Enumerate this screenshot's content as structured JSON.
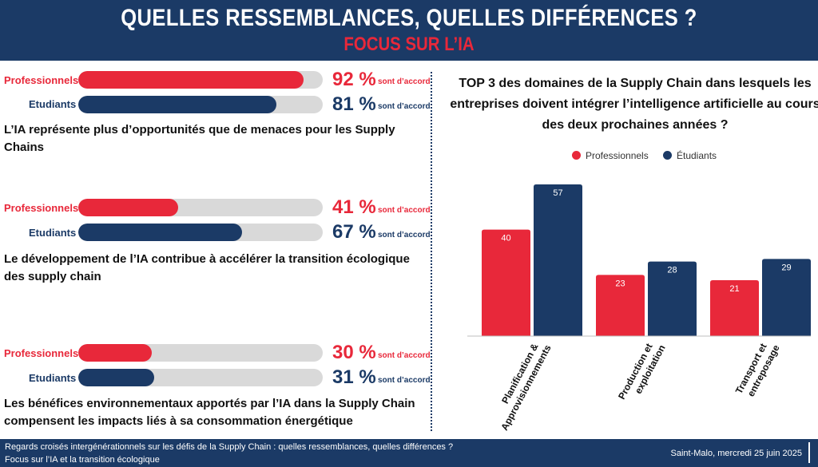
{
  "header": {
    "title": "QUELLES RESSEMBLANCES, QUELLES DIFFÉRENCES ?",
    "subtitle": "FOCUS SUR L’IA"
  },
  "colors": {
    "navy": "#1b3a66",
    "red": "#e8283a",
    "track": "#d9d9d9"
  },
  "left_panel": {
    "rows": [
      {
        "professionnels": {
          "label": "Professionnels",
          "value": 92,
          "pct": "92 %",
          "suffix": "sont d’accord"
        },
        "etudiants": {
          "label": "Etudiants",
          "value": 81,
          "pct": "81 %",
          "suffix": "sont d’accord"
        },
        "statement": "L’IA représente plus d’opportunités que de menaces pour les Supply Chains"
      },
      {
        "professionnels": {
          "label": "Professionnels",
          "value": 41,
          "pct": "41 %",
          "suffix": "sont d’accord"
        },
        "etudiants": {
          "label": "Etudiants",
          "value": 67,
          "pct": "67 %",
          "suffix": "sont d’accord"
        },
        "statement": "Le développement de l’IA contribue à accélérer la transition écologique des supply chain"
      },
      {
        "professionnels": {
          "label": "Professionnels",
          "value": 30,
          "pct": "30 %",
          "suffix": "sont d’accord"
        },
        "etudiants": {
          "label": "Etudiants",
          "value": 31,
          "pct": "31 %",
          "suffix": "sont d’accord"
        },
        "statement": "Les bénéfices environnementaux apportés par l’IA dans la Supply Chain compensent les impacts liés à sa consommation énergétique"
      }
    ]
  },
  "chart_data": {
    "type": "bar",
    "title": "TOP 3 des domaines de la Supply Chain dans lesquels les entreprises doivent  intégrer l’intelligence artificielle au cours des deux prochaines années ?",
    "categories": [
      "Planification & Approvisionnements",
      "Production et exploitation",
      "Transport et entreposage"
    ],
    "category_lines": [
      [
        "Planification &",
        "Approvisionnements"
      ],
      [
        "Production et",
        "exploitation"
      ],
      [
        "Transport et",
        "entreposage"
      ]
    ],
    "series": [
      {
        "name": "Professionnels",
        "color": "#e8283a",
        "values": [
          40,
          23,
          21
        ]
      },
      {
        "name": "Étudiants",
        "color": "#1b3a66",
        "values": [
          57,
          28,
          29
        ]
      }
    ],
    "ylim": [
      0,
      60
    ],
    "legend_position": "top",
    "grid": false
  },
  "footer": {
    "line1": "Regards croisés intergénérationnels sur les défis de la Supply Chain : quelles ressemblances, quelles différences ?",
    "line2": "Focus sur l’IA et la transition écologique",
    "right": "Saint-Malo, mercredi 25 juin 2025"
  }
}
